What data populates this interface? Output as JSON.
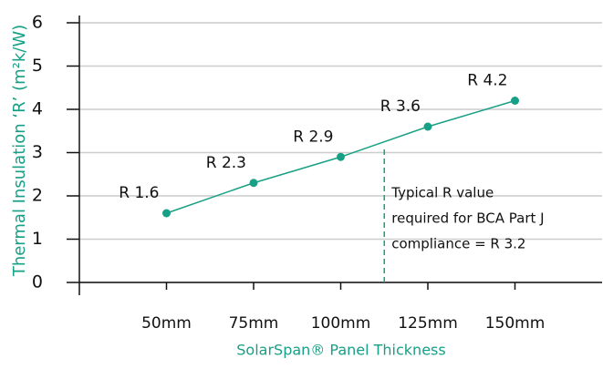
{
  "chart_data": {
    "type": "line",
    "x_label": "SolarSpan® Panel Thickness",
    "y_label": "Thermal Insulation ‘R’ (m²k/W)",
    "x": [
      50,
      75,
      100,
      125,
      150
    ],
    "series": [
      {
        "name": "R value",
        "color": "#17a085",
        "values": [
          1.6,
          2.3,
          2.9,
          3.6,
          4.2
        ],
        "value_labels": [
          "R 1.6",
          "R 2.3",
          "R 2.9",
          "R 3.6",
          "R 4.2"
        ]
      }
    ],
    "xlim": [
      25,
      175
    ],
    "xticks": [
      {
        "value": 50,
        "label": "50mm"
      },
      {
        "value": 75,
        "label": "75mm"
      },
      {
        "value": 100,
        "label": "100mm"
      },
      {
        "value": 125,
        "label": "125mm"
      },
      {
        "value": 150,
        "label": "150mm"
      }
    ],
    "ylim": [
      0,
      6
    ],
    "yticks": [
      0,
      1,
      2,
      3,
      4,
      5,
      6
    ],
    "grid": true,
    "annotation": {
      "x": 112.5,
      "y": 3.2,
      "lines": [
        "Typical R value",
        "required for BCA Part J",
        "compliance = R 3.2"
      ]
    }
  }
}
